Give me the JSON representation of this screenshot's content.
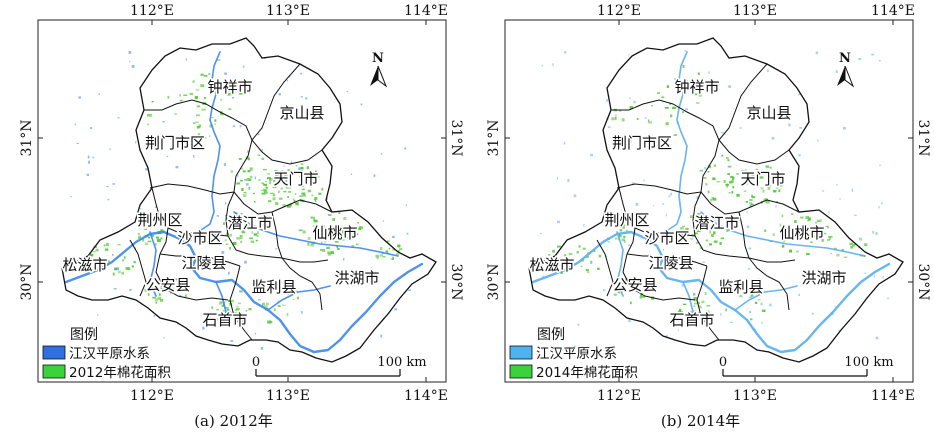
{
  "panels": [
    {
      "caption": "(a) 2012年",
      "legend_title": "图例",
      "legend_items": [
        {
          "label": "江汉平原水系",
          "color": "#2f6fe0"
        },
        {
          "label": "2012年棉花面积",
          "color": "#3cd23c"
        }
      ],
      "water_color": "#3b86ee",
      "cotton_color": "#57c83a"
    },
    {
      "caption": "(b) 2014年",
      "legend_title": "图例",
      "legend_items": [
        {
          "label": "江汉平原水系",
          "color": "#4fb3f0"
        },
        {
          "label": "2014年棉花面积",
          "color": "#3cd23c"
        }
      ],
      "water_color": "#58aef0",
      "cotton_color": "#57c83a"
    }
  ],
  "lon_labels": [
    "112°E",
    "113°E",
    "114°E"
  ],
  "lat_labels": [
    "31°N",
    "30°N"
  ],
  "north_label": "N",
  "scale": {
    "zero": "0",
    "max": "100 km"
  },
  "regions": [
    "钟祥市",
    "京山县",
    "荆门市区",
    "天门市",
    "荆州区",
    "潜江市",
    "沙市区",
    "仙桃市",
    "松滋市",
    "江陵县",
    "公安县",
    "监利县",
    "洪湖市",
    "石首市"
  ]
}
